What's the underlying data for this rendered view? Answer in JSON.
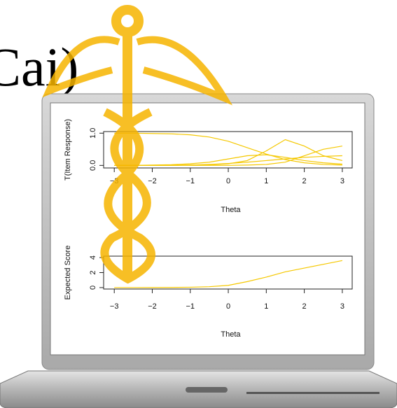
{
  "heading": "Cai)",
  "chart_data": [
    {
      "type": "line",
      "x_label": "Theta",
      "y_label": "T(Item Response)",
      "x": [
        -3,
        -2.5,
        -2,
        -1.5,
        -1,
        -0.5,
        0,
        0.5,
        1,
        1.5,
        2,
        2.5,
        3
      ],
      "series": [
        {
          "color": "#f5c800",
          "values": [
            1.0,
            1.0,
            0.99,
            0.98,
            0.95,
            0.88,
            0.75,
            0.55,
            0.35,
            0.18,
            0.08,
            0.03,
            0.01
          ]
        },
        {
          "color": "#f5c800",
          "values": [
            0,
            0,
            0.01,
            0.02,
            0.05,
            0.1,
            0.2,
            0.3,
            0.33,
            0.25,
            0.15,
            0.08,
            0.04
          ]
        },
        {
          "color": "#f5c800",
          "values": [
            0,
            0,
            0,
            0,
            0.01,
            0.02,
            0.05,
            0.15,
            0.45,
            0.8,
            0.6,
            0.3,
            0.15
          ]
        },
        {
          "color": "#f5c800",
          "values": [
            0,
            0,
            0,
            0,
            0,
            0,
            0,
            0.01,
            0.03,
            0.1,
            0.3,
            0.5,
            0.6
          ]
        },
        {
          "color": "#f5c800",
          "values": [
            0,
            0,
            0,
            0,
            0.01,
            0.03,
            0.06,
            0.1,
            0.15,
            0.2,
            0.25,
            0.28,
            0.3
          ]
        }
      ],
      "xlim": [
        -3.28,
        3.26
      ],
      "xticks": [
        {
          "value": -3,
          "label": "−3"
        },
        {
          "value": -2,
          "label": "−2"
        },
        {
          "value": -1,
          "label": "−1"
        },
        0,
        1,
        2,
        3
      ],
      "ylim": [
        -0.08,
        1.05
      ],
      "yticks": [
        {
          "value": 0,
          "label": "0.0"
        },
        {
          "value": 1,
          "label": "1.0"
        }
      ]
    },
    {
      "type": "line",
      "x_label": "Theta",
      "y_label": "Expected Score",
      "x": [
        -3,
        -2.5,
        -2,
        -1.5,
        -1,
        -0.5,
        0,
        0.5,
        1,
        1.5,
        2,
        2.5,
        3
      ],
      "series": [
        {
          "color": "#f5c800",
          "values": [
            0,
            0,
            0.01,
            0.02,
            0.05,
            0.12,
            0.3,
            0.8,
            1.4,
            2.1,
            2.6,
            3.1,
            3.6
          ]
        }
      ],
      "xlim": [
        -3.28,
        3.26
      ],
      "xticks": [
        {
          "value": -3,
          "label": "−3"
        },
        {
          "value": -2,
          "label": "−2"
        },
        {
          "value": -1,
          "label": "−1"
        },
        0,
        1,
        2,
        3
      ],
      "ylim": [
        -0.19,
        4.19
      ],
      "yticks": [
        0,
        2,
        4
      ]
    }
  ]
}
